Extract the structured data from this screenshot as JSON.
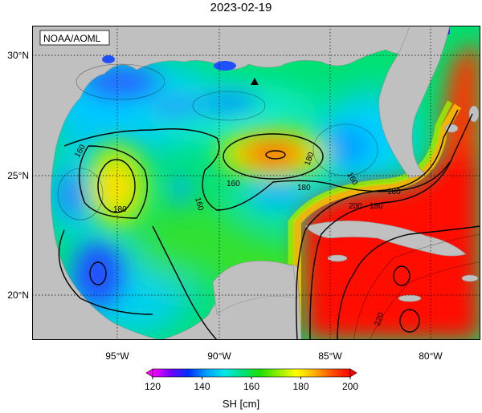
{
  "title": "2023-02-19",
  "credit": "NOAA/AOML",
  "map": {
    "lon_range": [
      -98.5,
      -77.5
    ],
    "lat_range": [
      18.0,
      31.2
    ],
    "lat_ticks": [
      "30°N",
      "25°N",
      "20°N"
    ],
    "lon_ticks": [
      "95°W",
      "90°W",
      "85°W",
      "80°W"
    ],
    "grid": "dotted",
    "land_color": "#c0c0c0",
    "marker": "filled triangle near 88.3°W 28.8°N"
  },
  "contour_labels": [
    "160",
    "180",
    "160",
    "160",
    "180",
    "180",
    "160",
    "180",
    "200",
    "180",
    "220"
  ],
  "colorbar": {
    "label": "SH [cm]",
    "ticks": [
      "120",
      "140",
      "160",
      "180",
      "200"
    ],
    "min": 120,
    "max": 200,
    "colors": [
      "#ff00ff",
      "#7000ff",
      "#0030ff",
      "#00a0ff",
      "#00e8e8",
      "#00e080",
      "#20e000",
      "#90ee00",
      "#ffff00",
      "#ffb000",
      "#ff5000",
      "#ff0000"
    ]
  }
}
